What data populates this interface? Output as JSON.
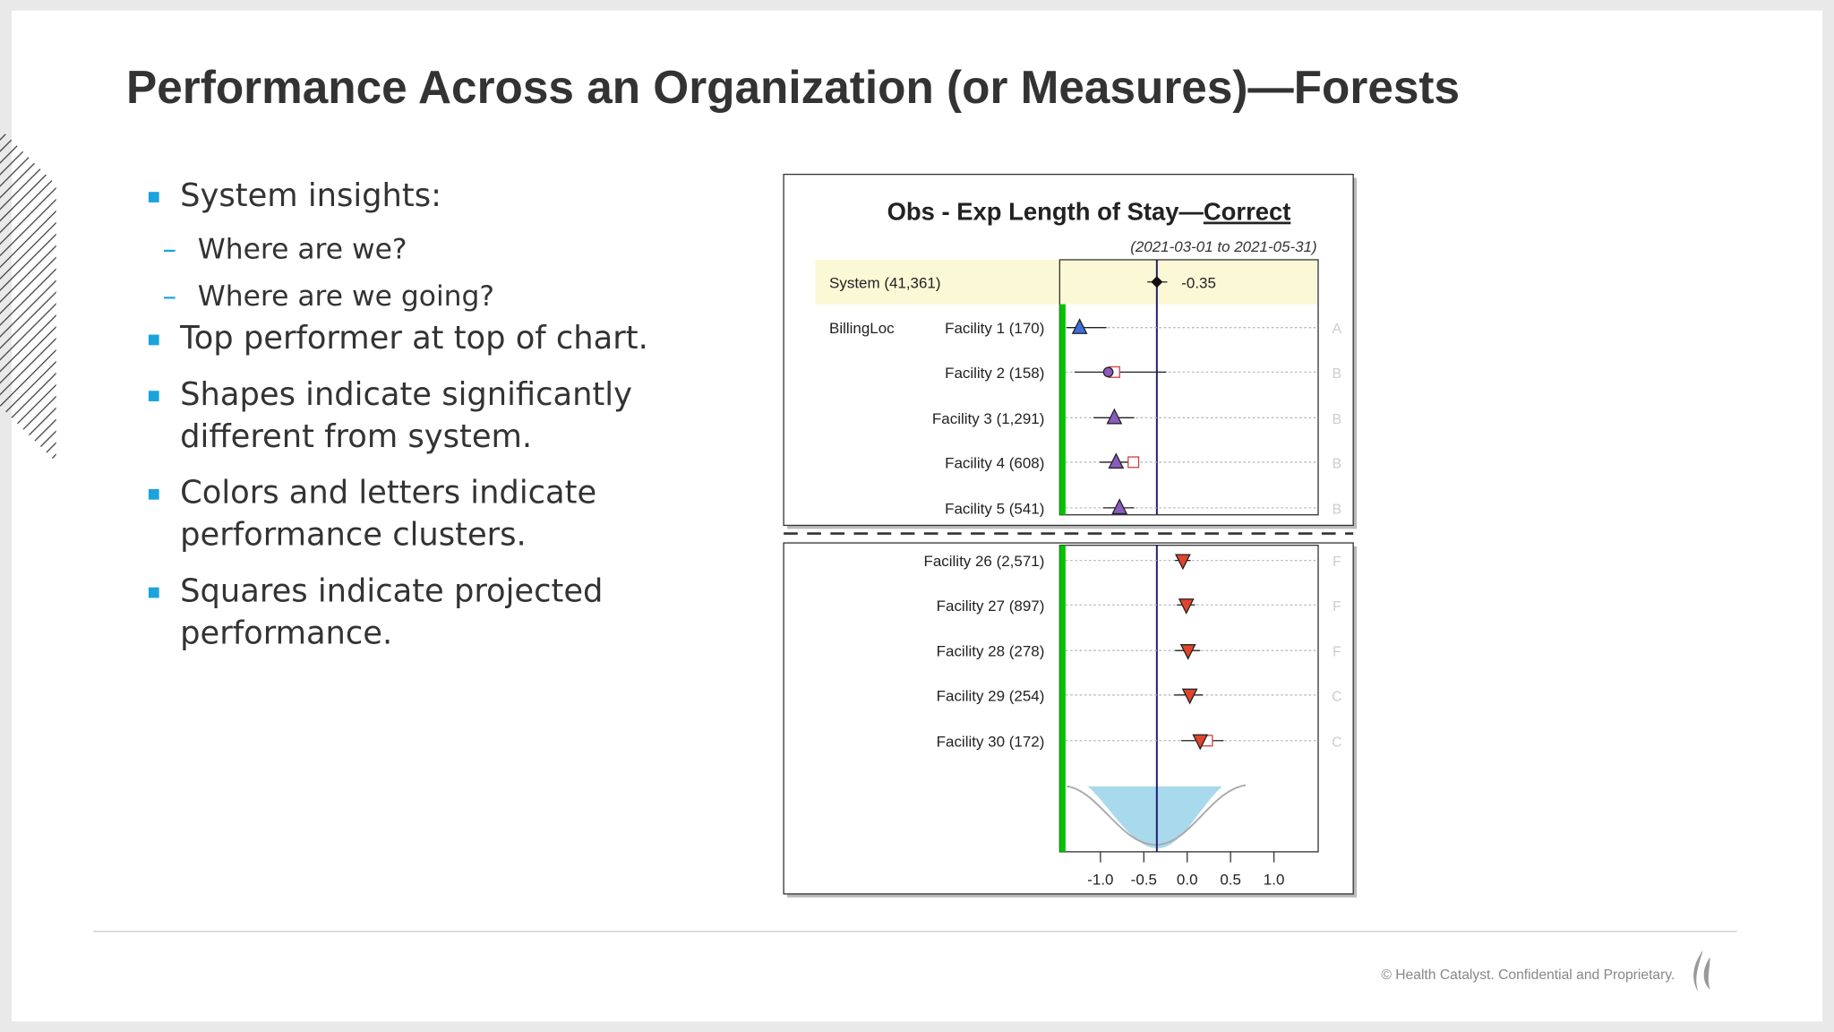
{
  "slide": {
    "title": "Performance Across an Organization (or Measures)—Forests",
    "bullets": [
      {
        "text": "System insights:",
        "sub": [
          "Where are we?",
          "Where are we going?"
        ]
      },
      {
        "text": "Top performer at top of chart."
      },
      {
        "text": "Shapes indicate significantly different from system."
      },
      {
        "text": "Colors and letters indicate performance clusters."
      },
      {
        "text": "Squares indicate projected performance."
      }
    ],
    "footer": "© Health Catalyst. Confidential and Proprietary."
  },
  "forest": {
    "title": "Obs - Exp Length of Stay—",
    "title_link": "Correct",
    "date_range": "(2021-03-01 to 2021-05-31)",
    "system": {
      "label": "System (41,361)",
      "value": -0.35,
      "low": -0.46,
      "high": -0.23
    },
    "group": "BillingLoc",
    "xlim": [
      -1.47,
      1.51
    ],
    "xticks": [
      {
        "value": -1,
        "label": "-1.0"
      },
      {
        "value": -0.5,
        "label": "-0.5"
      },
      {
        "value": 0,
        "label": "0.0"
      },
      0.5,
      {
        "value": 1,
        "label": "1.0"
      }
    ],
    "top_rows": [
      {
        "label": "Facility 1 (170)",
        "value": -1.24,
        "low": -1.39,
        "high": -0.93,
        "shape": "triangle",
        "color": "#3a6fd8",
        "cluster": "A"
      },
      {
        "label": "Facility 2 (158)",
        "value": -0.91,
        "low": -1.3,
        "high": -0.24,
        "projected": -0.84,
        "shape": "circle",
        "color": "#8a5cc0",
        "cluster": "B"
      },
      {
        "label": "Facility 3 (1,291)",
        "value": -0.84,
        "low": -1.08,
        "high": -0.61,
        "shape": "triangle",
        "color": "#8a5cc0",
        "cluster": "B"
      },
      {
        "label": "Facility 4 (608)",
        "value": -0.82,
        "low": -1.01,
        "high": -0.64,
        "projected": -0.62,
        "shape": "triangle",
        "color": "#8a5cc0",
        "cluster": "B"
      },
      {
        "label": "Facility 5 (541)",
        "value": -0.78,
        "low": -0.97,
        "high": -0.61,
        "shape": "triangle",
        "color": "#8a5cc0",
        "cluster": "B"
      }
    ],
    "bottom_rows": [
      {
        "label": "Facility 26 (2,571)",
        "value": -0.05,
        "low": -0.14,
        "high": 0.04,
        "shape": "triangle-down",
        "color": "#e0442c",
        "cluster": "F"
      },
      {
        "label": "Facility 27 (897)",
        "value": -0.01,
        "low": -0.12,
        "high": 0.09,
        "shape": "triangle-down",
        "color": "#e0442c",
        "cluster": "F"
      },
      {
        "label": "Facility 28 (278)",
        "value": 0.01,
        "low": -0.14,
        "high": 0.15,
        "shape": "triangle-down",
        "color": "#e0442c",
        "cluster": "F"
      },
      {
        "label": "Facility 29 (254)",
        "value": 0.03,
        "low": -0.15,
        "high": 0.18,
        "shape": "triangle-down",
        "color": "#e0442c",
        "cluster": "C"
      },
      {
        "label": "Facility 30 (172)",
        "value": 0.15,
        "low": -0.07,
        "high": 0.42,
        "projected": 0.23,
        "shape": "triangle-down",
        "color": "#e0442c",
        "cluster": "C"
      }
    ]
  }
}
